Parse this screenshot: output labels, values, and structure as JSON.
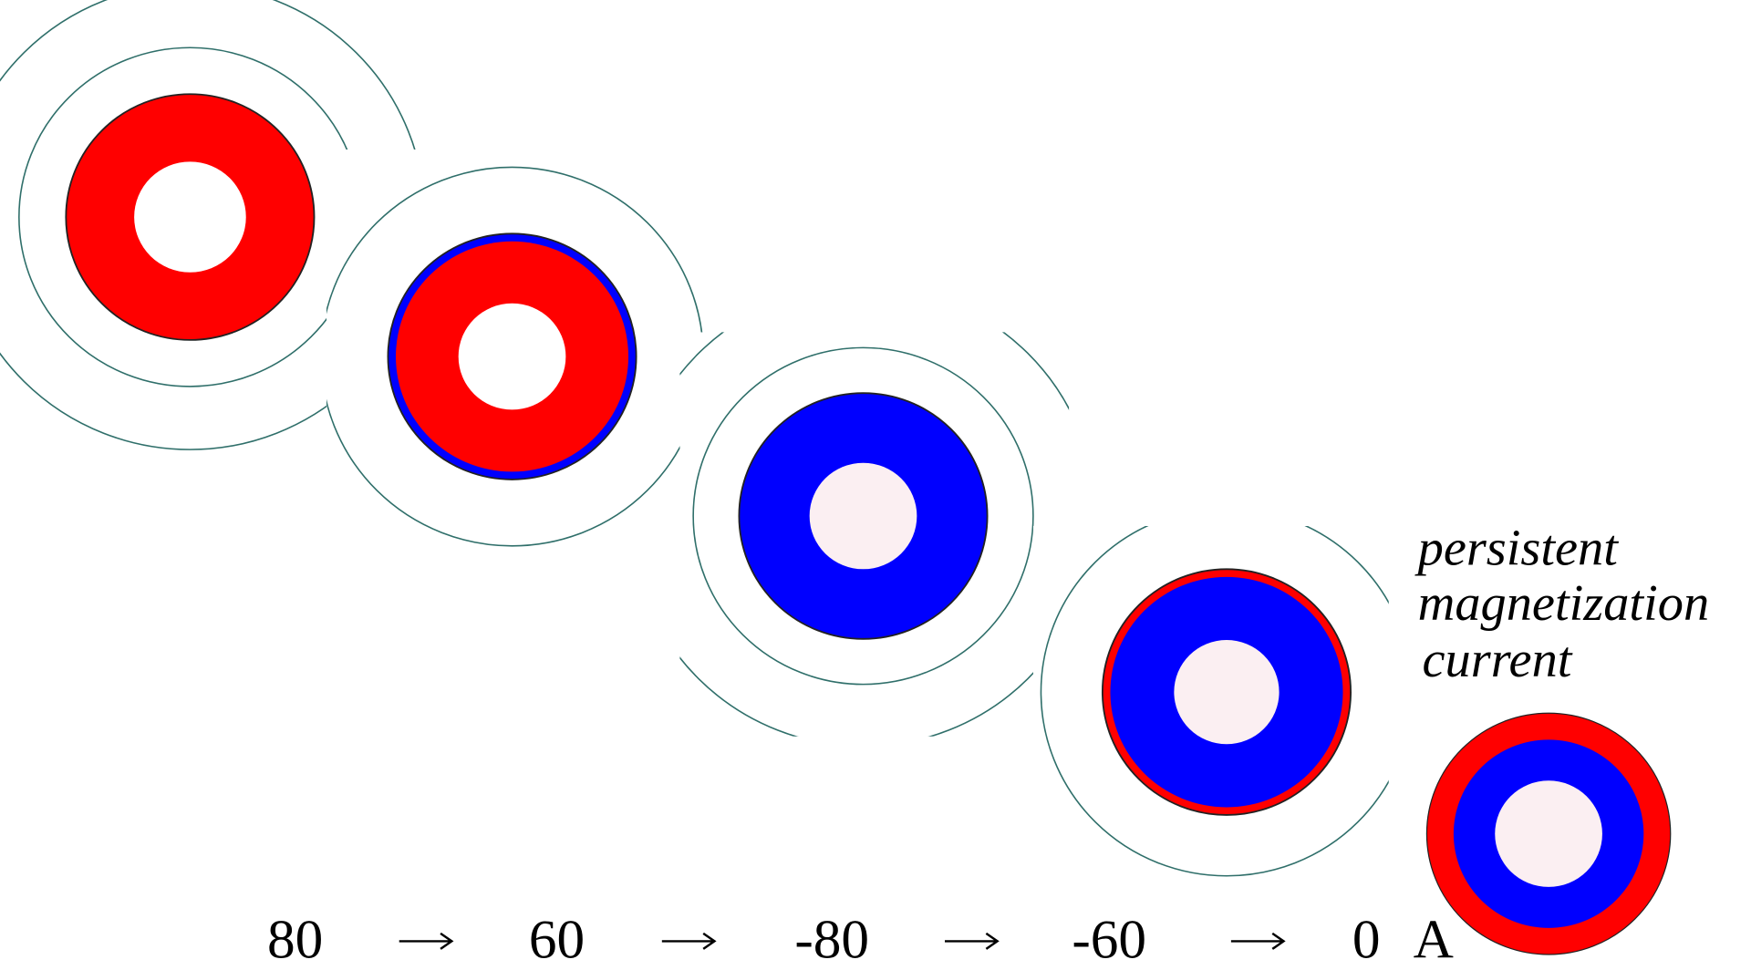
{
  "currents": [
    80,
    60,
    -80,
    -60,
    0
  ],
  "unit": "A",
  "annotation": [
    "persistent",
    "magnetization",
    "current"
  ]
}
